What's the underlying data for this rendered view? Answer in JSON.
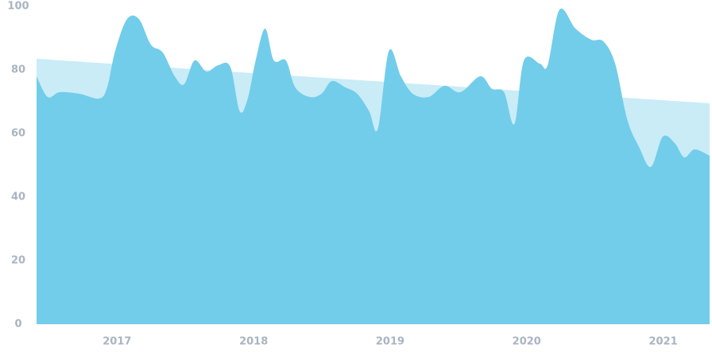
{
  "chart_data": {
    "type": "area",
    "xlim": [
      2016.41,
      2021.34
    ],
    "xticks": [
      2017,
      2018,
      2019,
      2020,
      2021
    ],
    "ylim": [
      0,
      100
    ],
    "yticks": [
      0,
      20,
      40,
      60,
      80,
      100
    ],
    "series": [
      {
        "color": "#c9ecf7",
        "x": [
          2016.41,
          2021.34
        ],
        "values": [
          83.5,
          69.5
        ]
      },
      {
        "color": "#72cdea",
        "x": [
          2016.41,
          2016.491,
          2016.579,
          2016.724,
          2016.869,
          2016.927,
          2016.986,
          2017.073,
          2017.16,
          2017.247,
          2017.334,
          2017.422,
          2017.491,
          2017.567,
          2017.654,
          2017.741,
          2017.829,
          2017.898,
          2017.957,
          2018.015,
          2018.084,
          2018.148,
          2018.236,
          2018.305,
          2018.41,
          2018.497,
          2018.573,
          2018.672,
          2018.759,
          2018.846,
          2018.91,
          2018.991,
          2019.079,
          2019.166,
          2019.282,
          2019.398,
          2019.515,
          2019.66,
          2019.747,
          2019.834,
          2019.91,
          2019.98,
          2020.096,
          2020.154,
          2020.241,
          2020.358,
          2020.474,
          2020.561,
          2020.648,
          2020.736,
          2020.823,
          2020.91,
          2020.997,
          2021.084,
          2021.154,
          2021.23,
          2021.34
        ],
        "values": [
          78,
          71.5,
          73,
          72.5,
          71,
          74.5,
          86,
          96,
          96,
          88,
          85.5,
          78,
          75.5,
          83,
          79.5,
          81.5,
          81,
          67,
          71,
          83,
          93,
          83,
          83,
          74.5,
          71.5,
          72.5,
          76.5,
          74.5,
          72.5,
          67,
          61.5,
          86,
          78,
          72.5,
          71.5,
          75,
          73,
          78,
          74,
          73,
          63,
          83,
          82,
          81.5,
          99,
          93,
          89.5,
          89,
          82,
          64.5,
          55.75,
          49.5,
          59,
          57,
          52.5,
          55,
          53
        ]
      }
    ]
  }
}
